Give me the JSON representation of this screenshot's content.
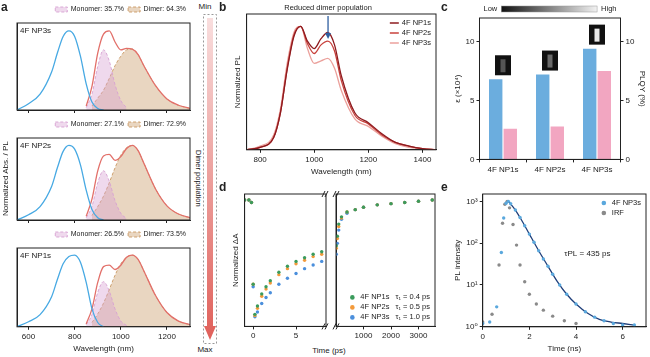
{
  "chart_data": [
    {
      "type": "line",
      "panel": "a",
      "title": "4F NP3s",
      "legend": "top",
      "tick_labels": false,
      "grid": false,
      "x": [
        550,
        600,
        650,
        700,
        725,
        750,
        775,
        800,
        825,
        850,
        875,
        900,
        925,
        950,
        975,
        1000,
        1025,
        1050,
        1075,
        1100,
        1150,
        1200,
        1250,
        1300
      ],
      "xlim": [
        550,
        1300
      ],
      "xticks": [
        600,
        800,
        1000,
        1200
      ],
      "ylim": [
        0,
        1.1
      ],
      "series": [
        {
          "color": "#47a9e3",
          "values": [
            0.0,
            0.08,
            0.2,
            0.48,
            0.72,
            0.93,
            1.0,
            0.93,
            0.68,
            0.33,
            0.1,
            0.02,
            0.0,
            null,
            null,
            null,
            null,
            null,
            null,
            null,
            null,
            null,
            null,
            null
          ]
        },
        {
          "color": "#e2706a",
          "values": [
            null,
            null,
            null,
            null,
            null,
            null,
            null,
            null,
            null,
            0.05,
            0.3,
            0.72,
            0.96,
            1.0,
            0.86,
            0.76,
            0.78,
            0.77,
            0.7,
            0.56,
            0.31,
            0.14,
            0.06,
            0.02
          ]
        },
        {
          "name": "Monomer: 35.7%",
          "type": "area",
          "line_style": "dashed",
          "color": "#d7a1d3",
          "values": [
            null,
            null,
            null,
            null,
            null,
            null,
            null,
            null,
            null,
            0.03,
            0.2,
            0.55,
            0.76,
            0.62,
            0.32,
            0.12,
            0.03,
            null,
            null,
            null,
            null,
            null,
            null,
            null
          ]
        },
        {
          "name": "Dimer: 64.3%",
          "type": "area",
          "line_style": "dashed",
          "color": "#c99863",
          "values": [
            null,
            null,
            null,
            null,
            null,
            null,
            null,
            null,
            null,
            null,
            0.05,
            0.15,
            0.25,
            0.4,
            0.56,
            0.68,
            0.76,
            0.77,
            0.7,
            0.56,
            0.31,
            0.14,
            0.06,
            0.02
          ]
        }
      ]
    },
    {
      "type": "line",
      "title": "4F NP2s",
      "ylabel": "Normalized Abs. / PL",
      "legend": "top",
      "tick_labels": false,
      "grid": false,
      "x": [
        550,
        600,
        650,
        700,
        725,
        750,
        775,
        800,
        825,
        850,
        875,
        900,
        925,
        950,
        975,
        1000,
        1025,
        1050,
        1075,
        1100,
        1150,
        1200,
        1250,
        1300
      ],
      "xlim": [
        550,
        1300
      ],
      "xticks": [
        600,
        800,
        1000,
        1200
      ],
      "ylim": [
        0,
        1.1
      ],
      "series": [
        {
          "color": "#47a9e3",
          "values": [
            0.0,
            0.07,
            0.18,
            0.45,
            0.7,
            0.92,
            1.0,
            0.95,
            0.74,
            0.4,
            0.14,
            0.03,
            0.0,
            null,
            null,
            null,
            null,
            null,
            null,
            null,
            null,
            null,
            null,
            null
          ]
        },
        {
          "color": "#e2706a",
          "values": [
            null,
            null,
            null,
            null,
            null,
            null,
            null,
            null,
            null,
            0.05,
            0.28,
            0.66,
            0.86,
            0.88,
            0.8,
            0.85,
            0.96,
            1.0,
            0.93,
            0.76,
            0.42,
            0.19,
            0.08,
            0.03
          ]
        },
        {
          "name": "Monomer: 27.1%",
          "type": "area",
          "line_style": "dashed",
          "color": "#d7a1d3",
          "values": [
            null,
            null,
            null,
            null,
            null,
            null,
            null,
            null,
            null,
            0.03,
            0.18,
            0.5,
            0.66,
            0.52,
            0.26,
            0.09,
            0.02,
            null,
            null,
            null,
            null,
            null,
            null,
            null
          ]
        },
        {
          "name": "Dimer: 72.9%",
          "type": "area",
          "line_style": "dashed",
          "color": "#c99863",
          "values": [
            null,
            null,
            null,
            null,
            null,
            null,
            null,
            null,
            null,
            null,
            0.06,
            0.18,
            0.32,
            0.5,
            0.7,
            0.87,
            0.97,
            1.0,
            0.93,
            0.76,
            0.42,
            0.19,
            0.08,
            0.03
          ]
        }
      ]
    },
    {
      "type": "line",
      "title": "4F NP1s",
      "xlabel": "Wavelength (nm)",
      "legend": "top",
      "tick_labels": "x",
      "grid": false,
      "x": [
        550,
        600,
        650,
        700,
        725,
        750,
        775,
        800,
        825,
        850,
        875,
        900,
        925,
        950,
        975,
        1000,
        1025,
        1050,
        1075,
        1100,
        1150,
        1200,
        1250,
        1300
      ],
      "xlim": [
        550,
        1300
      ],
      "xticks": [
        600,
        800,
        1000,
        1200
      ],
      "ylim": [
        0,
        1.1
      ],
      "series": [
        {
          "color": "#47a9e3",
          "values": [
            0.0,
            0.07,
            0.17,
            0.42,
            0.66,
            0.88,
            0.98,
            1.0,
            0.9,
            0.62,
            0.25,
            0.06,
            0.0,
            null,
            null,
            null,
            null,
            null,
            null,
            null,
            null,
            null,
            null,
            null
          ]
        },
        {
          "color": "#e2706a",
          "values": [
            null,
            null,
            null,
            null,
            null,
            null,
            null,
            null,
            null,
            0.04,
            0.25,
            0.62,
            0.84,
            0.86,
            0.8,
            0.86,
            0.97,
            1.0,
            0.94,
            0.78,
            0.44,
            0.2,
            0.08,
            0.03
          ]
        },
        {
          "name": "Monomer: 26.5%",
          "type": "area",
          "line_style": "dashed",
          "color": "#d7a1d3",
          "values": [
            null,
            null,
            null,
            null,
            null,
            null,
            null,
            null,
            null,
            0.03,
            0.17,
            0.48,
            0.63,
            0.5,
            0.25,
            0.08,
            0.02,
            null,
            null,
            null,
            null,
            null,
            null,
            null
          ]
        },
        {
          "name": "Dimer: 73.5%",
          "type": "area",
          "line_style": "dashed",
          "color": "#c99863",
          "values": [
            null,
            null,
            null,
            null,
            null,
            null,
            null,
            null,
            null,
            null,
            0.06,
            0.18,
            0.33,
            0.52,
            0.72,
            0.88,
            0.97,
            1.0,
            0.94,
            0.78,
            0.44,
            0.2,
            0.08,
            0.03
          ]
        }
      ]
    },
    {
      "type": "line",
      "panel": "b",
      "xlabel": "Wavelength (nm)",
      "ylabel": "Normalized PL",
      "legend": "upper right",
      "tick_labels": "x",
      "grid": false,
      "annotations": [
        "Reduced dimer population"
      ],
      "x": [
        750,
        800,
        850,
        875,
        900,
        925,
        950,
        975,
        1000,
        1025,
        1050,
        1075,
        1100,
        1150,
        1200,
        1250,
        1300,
        1350,
        1400,
        1450
      ],
      "xlim": [
        750,
        1450
      ],
      "xticks": [
        800,
        1000,
        1200,
        1400
      ],
      "ylim": [
        0,
        1.1
      ],
      "series": [
        {
          "name": "4F NP1s",
          "color": "#8e1b1f",
          "values": [
            0.0,
            0.02,
            0.1,
            0.3,
            0.65,
            0.92,
            1.0,
            0.88,
            0.82,
            0.9,
            0.95,
            0.85,
            0.6,
            0.3,
            0.22,
            0.13,
            0.06,
            0.03,
            0.01,
            0.0
          ]
        },
        {
          "name": "4F NP2s",
          "color": "#c8423d",
          "values": [
            0.0,
            0.02,
            0.1,
            0.3,
            0.66,
            0.93,
            1.0,
            0.86,
            0.78,
            0.85,
            0.88,
            0.8,
            0.56,
            0.28,
            0.21,
            0.12,
            0.06,
            0.03,
            0.01,
            0.0
          ]
        },
        {
          "name": "4F NP3s",
          "color": "#eba19c",
          "values": [
            0.0,
            0.03,
            0.12,
            0.33,
            0.7,
            0.95,
            1.0,
            0.82,
            0.7,
            0.72,
            0.74,
            0.66,
            0.48,
            0.25,
            0.19,
            0.11,
            0.05,
            0.02,
            0.01,
            0.0
          ]
        }
      ]
    },
    {
      "type": "bar",
      "panel": "c",
      "ylabel": "ε (×10⁴)",
      "y2label": "PLQY (%)",
      "grid": false,
      "annotations": [
        "Low",
        "High"
      ],
      "categories": [
        "4F NP1s",
        "4F NP2s",
        "4F NP3s"
      ],
      "ylim": [
        0,
        12
      ],
      "yticks": [
        0,
        5,
        10
      ],
      "y2lim": [
        0,
        12
      ],
      "y2ticks": [
        0,
        5,
        10
      ],
      "series": [
        {
          "color": "#6badde",
          "values": [
            6.8,
            7.2,
            9.4
          ]
        },
        {
          "color": "#f2a6c1",
          "values": [
            2.6,
            2.8,
            7.5
          ],
          "axis": "y2"
        }
      ]
    },
    {
      "type": "scatter",
      "panel": "d",
      "xlabel": "Time (ps)",
      "ylabel": "Normalized ΔA",
      "tick_labels": "x",
      "grid": false,
      "x": [
        -1,
        -0.5,
        -0.2,
        0,
        0.2,
        0.5,
        1,
        1.5,
        2,
        3,
        4,
        5,
        6,
        7,
        8
      ],
      "xlim": [
        -1,
        8.5
      ],
      "xticks": [
        0,
        5
      ],
      "ylim": [
        -0.05,
        1.05
      ],
      "series": [
        {
          "color": "#3b9b5c",
          "marker": "circle",
          "values": [
            1.0,
            1.0,
            0.98,
            0.3,
            0.05,
            0.12,
            0.22,
            0.28,
            0.33,
            0.4,
            0.45,
            0.49,
            0.52,
            0.55,
            0.57
          ]
        },
        {
          "color": "#f39a3b",
          "marker": "circle",
          "values": [
            1.0,
            1.0,
            0.98,
            0.3,
            0.04,
            0.1,
            0.2,
            0.26,
            0.31,
            0.38,
            0.43,
            0.47,
            0.5,
            0.53,
            0.55
          ]
        },
        {
          "color": "#4b8fdc",
          "marker": "circle",
          "values": [
            1.0,
            1.0,
            0.98,
            0.28,
            0.03,
            0.07,
            0.14,
            0.19,
            0.23,
            0.3,
            0.35,
            0.39,
            0.43,
            0.46,
            0.49
          ]
        }
      ]
    },
    {
      "type": "scatter",
      "legend": "lower right",
      "tick_labels": "x",
      "grid": false,
      "annotations": [
        "τ₁ = 0.4 ps",
        "τ₁ = 0.5 ps",
        "τ₁ = 1.0 ps"
      ],
      "x": [
        10,
        50,
        100,
        200,
        400,
        700,
        1000,
        1500,
        2000,
        2500,
        3000,
        3500
      ],
      "xlim": [
        0,
        3600
      ],
      "xticks": [
        1000,
        2000,
        3000
      ],
      "ylim": [
        -0.05,
        1.05
      ],
      "series": [
        {
          "name": "4F NP1s",
          "color": "#3b9b5c",
          "marker": "circle",
          "values": [
            0.62,
            0.7,
            0.8,
            0.86,
            0.9,
            0.92,
            0.94,
            0.96,
            0.97,
            0.98,
            0.99,
            1.0
          ]
        },
        {
          "name": "4F NP2s",
          "color": "#f39a3b",
          "marker": "circle",
          "values": [
            0.6,
            0.68,
            0.78,
            0.85,
            0.9,
            0.92,
            0.94,
            0.96,
            0.97,
            0.98,
            0.99,
            1.0
          ]
        },
        {
          "name": "4F NP3s",
          "color": "#4b8fdc",
          "marker": "circle",
          "values": [
            0.55,
            0.64,
            0.75,
            0.84,
            0.89,
            0.92,
            0.94,
            0.96,
            0.97,
            0.98,
            0.99,
            1.0
          ]
        }
      ]
    },
    {
      "type": "scatter",
      "panel": "e",
      "xlabel": "Time (ns)",
      "ylabel": "PL intensity",
      "legend": "upper right",
      "log": "y",
      "grid": false,
      "annotations": [
        "τPL = 435 ps"
      ],
      "xlim": [
        0,
        7
      ],
      "xticks": [
        0,
        2,
        4,
        6
      ],
      "ylim": [
        1,
        1500
      ],
      "yticks": [
        {
          "value": 1,
          "label": "10⁰"
        },
        {
          "value": 10,
          "label": "10¹"
        },
        {
          "value": 100,
          "label": "10²"
        },
        {
          "value": 1000,
          "label": "10³"
        }
      ],
      "series": [
        {
          "name": "4F NP3s",
          "color": "#5aa8dd",
          "marker": "circle",
          "x": [
            0,
            0.3,
            0.6,
            0.8,
            0.9,
            1.0,
            1.1,
            1.2,
            1.4,
            1.6,
            1.8,
            2.0,
            2.2,
            2.4,
            2.6,
            2.8,
            3.0,
            3.3,
            3.6,
            4.0,
            4.4,
            4.8,
            5.2,
            5.6,
            6.0,
            6.5
          ],
          "values": [
            1.2,
            1.3,
            3,
            60,
            400,
            900,
            1000,
            880,
            620,
            410,
            260,
            165,
            105,
            66,
            42,
            28,
            18,
            10,
            6,
            3.5,
            2.3,
            1.7,
            1.4,
            1.2,
            1.1,
            1.1
          ]
        },
        {
          "name": "IRF",
          "color": "#8a8a8a",
          "marker": "circle",
          "x": [
            0,
            0.4,
            0.7,
            0.85,
            0.95,
            1.05,
            1.15,
            1.3,
            1.45,
            1.6,
            1.8,
            2.0,
            2.3,
            2.6,
            3.0,
            3.5,
            4.0
          ],
          "values": [
            1.3,
            2,
            30,
            300,
            850,
            1000,
            700,
            280,
            90,
            30,
            12,
            6,
            3.5,
            2.5,
            1.8,
            1.4,
            1.2
          ]
        },
        {
          "type": "line",
          "color": "#1f3f7a",
          "x": [
            1.1,
            1.4,
            1.7,
            2.0,
            2.4,
            2.8,
            3.2,
            3.6,
            4.0,
            4.5,
            5.0,
            5.5,
            6.0,
            6.5
          ],
          "values": [
            1000,
            620,
            330,
            165,
            66,
            28,
            12,
            6,
            3.5,
            2.1,
            1.5,
            1.3,
            1.2,
            1.1
          ]
        }
      ]
    }
  ],
  "arrow": {
    "start": "Min",
    "end": "Max",
    "label": "Dimer population"
  }
}
